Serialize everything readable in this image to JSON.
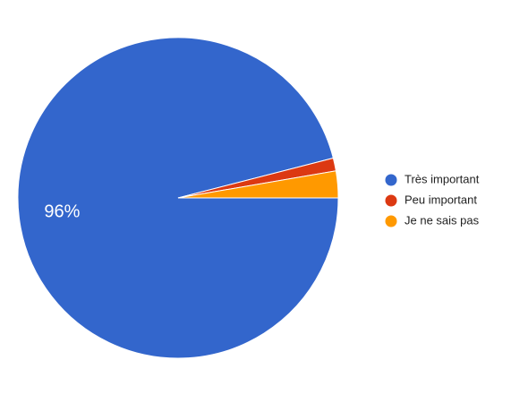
{
  "chart_data": {
    "type": "pie",
    "categories": [
      "Très important",
      "Peu important",
      "Je ne sais pas"
    ],
    "values": [
      96,
      1.3,
      2.7
    ],
    "value_labels": [
      "96%",
      null,
      null
    ],
    "colors": [
      "#3366cc",
      "#dc3912",
      "#ff9900"
    ],
    "legend": "right"
  }
}
